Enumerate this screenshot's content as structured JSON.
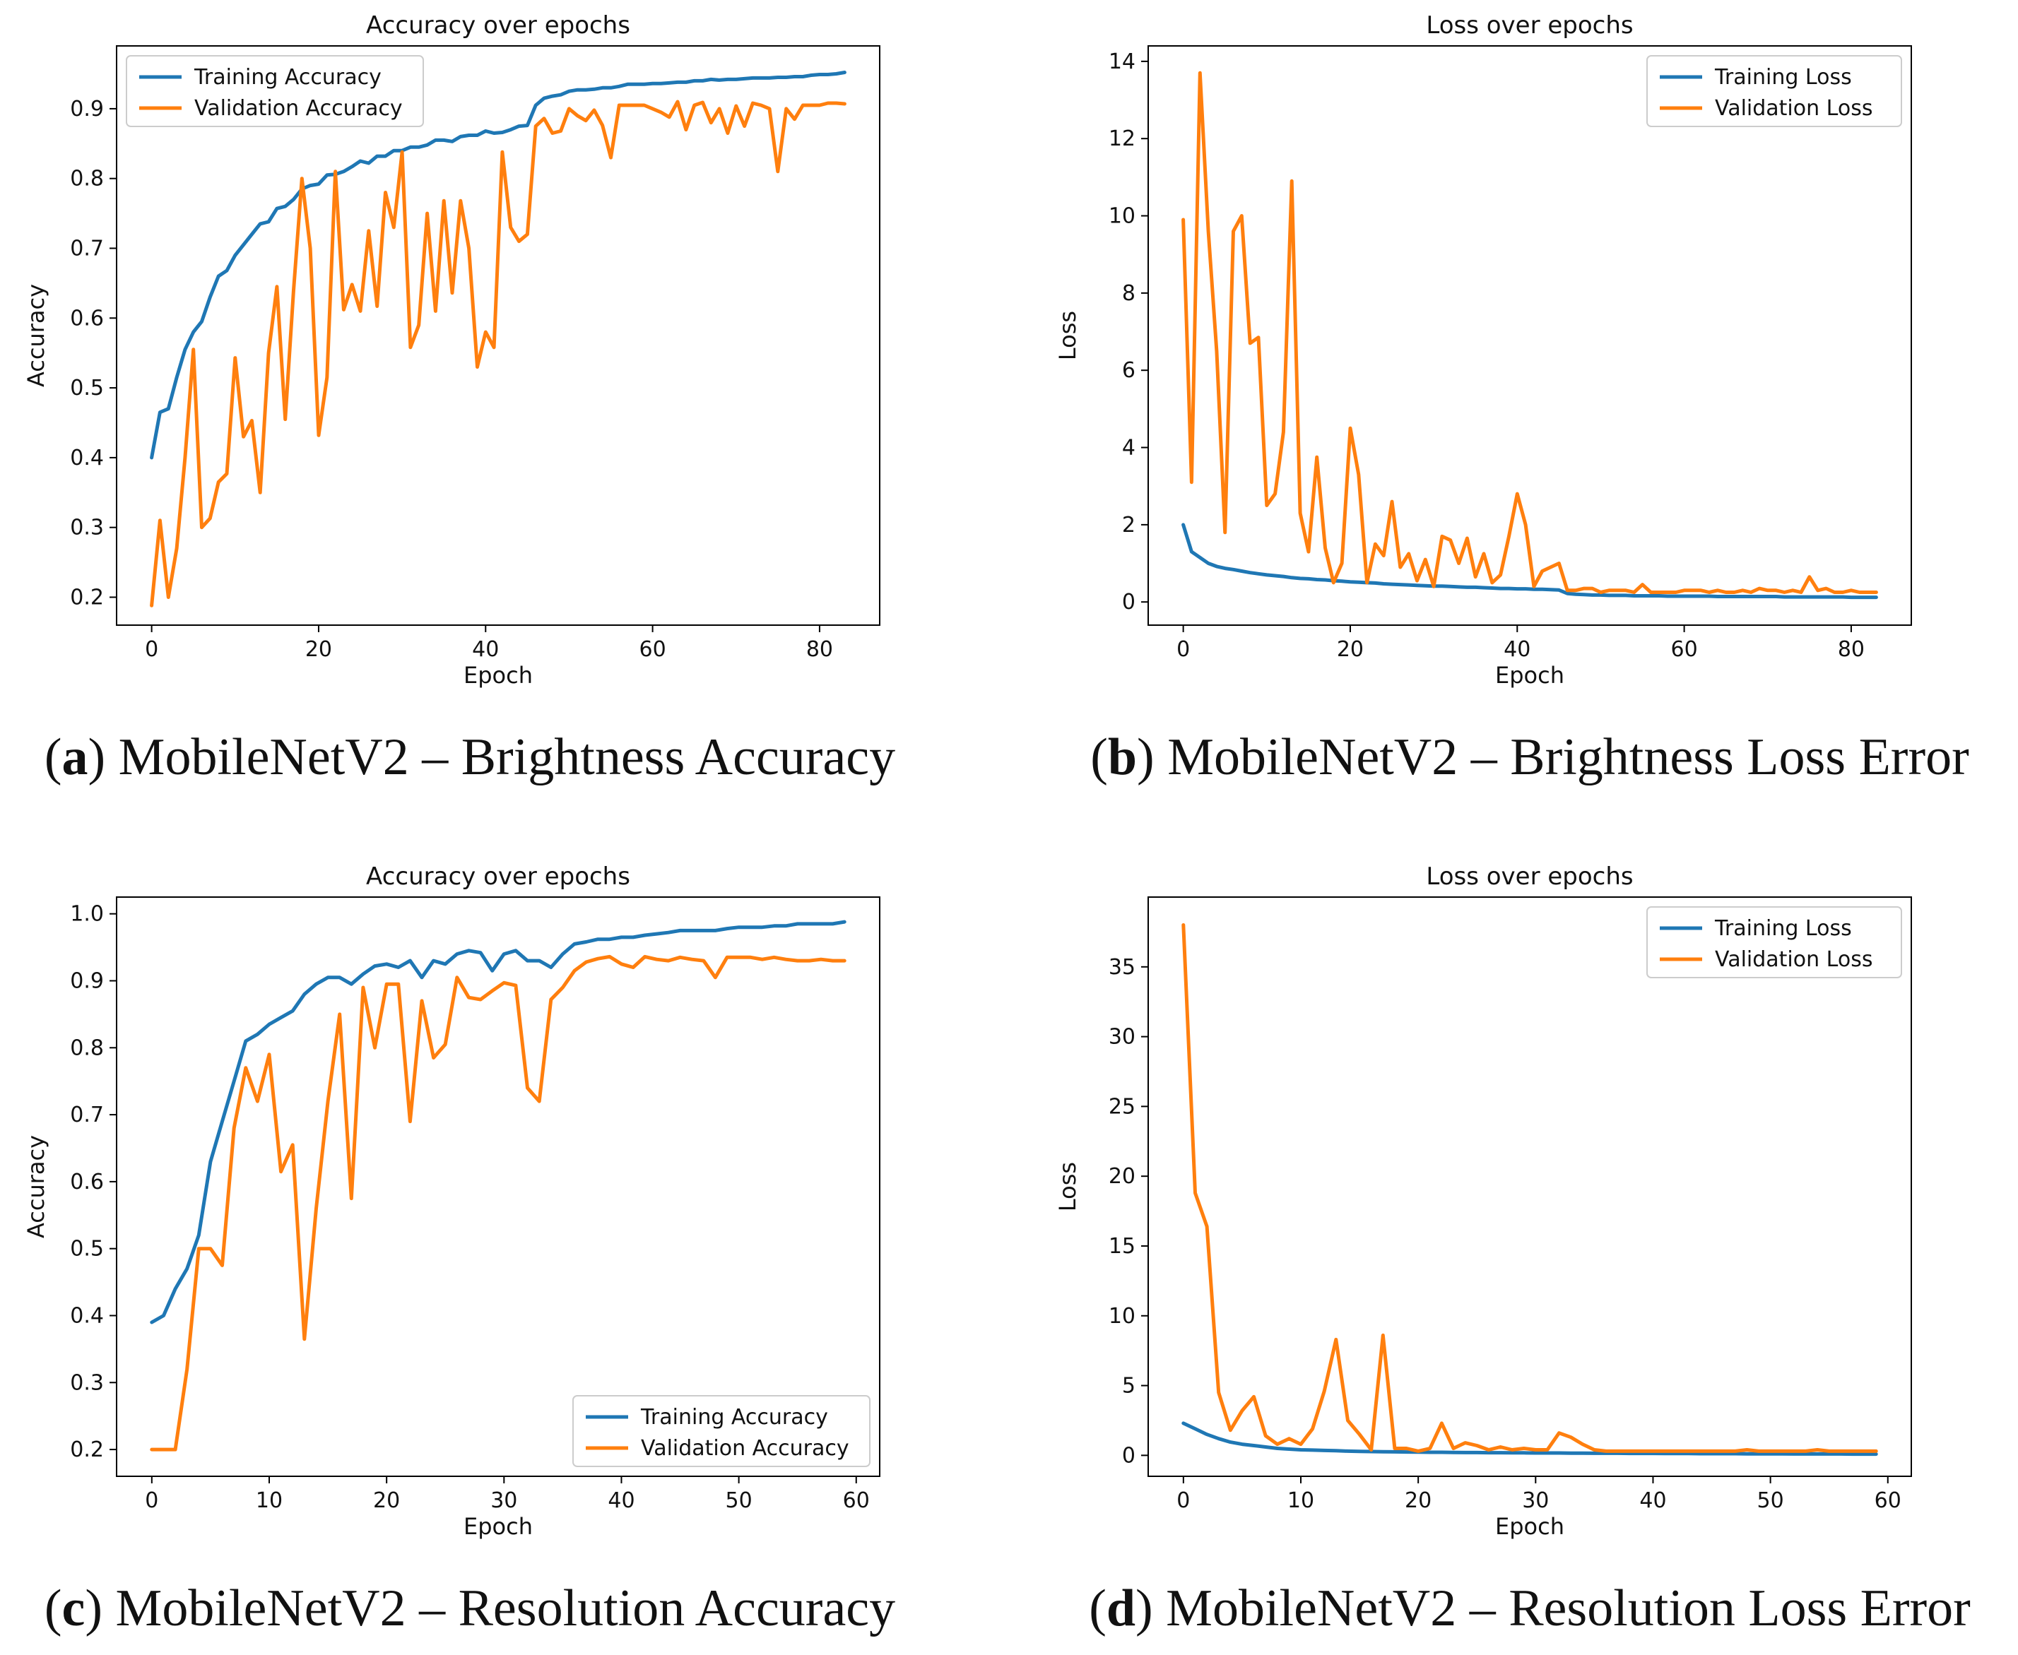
{
  "colors": {
    "training": "#1f77b4",
    "validation": "#ff7f0e",
    "axis": "#000000"
  },
  "figure": {
    "panels": [
      {
        "id": "a",
        "letter": "a",
        "caption": "MobileNetV2 – Brightness Accuracy"
      },
      {
        "id": "b",
        "letter": "b",
        "caption": "MobileNetV2 – Brightness Loss Error"
      },
      {
        "id": "c",
        "letter": "c",
        "caption": "MobileNetV2 – Resolution Accuracy"
      },
      {
        "id": "d",
        "letter": "d",
        "caption": "MobileNetV2 – Resolution Loss Error"
      }
    ]
  },
  "chart_data": [
    {
      "panel": "a",
      "type": "line",
      "title": "Accuracy over epochs",
      "xlabel": "Epoch",
      "ylabel": "Accuracy",
      "xlim": [
        -4.2,
        87.2
      ],
      "ylim": [
        0.16,
        0.99
      ],
      "xticks": [
        0,
        20,
        40,
        60,
        80
      ],
      "xtick_labels": [
        "0",
        "20",
        "40",
        "60",
        "80"
      ],
      "yticks": [
        0.2,
        0.3,
        0.4,
        0.5,
        0.6,
        0.7,
        0.8,
        0.9
      ],
      "ytick_labels": [
        "0.2",
        "0.3",
        "0.4",
        "0.5",
        "0.6",
        "0.7",
        "0.8",
        "0.9"
      ],
      "legend_loc": "upper-left",
      "series": [
        {
          "name": "Training Accuracy",
          "values": [
            0.4,
            0.465,
            0.47,
            0.515,
            0.555,
            0.58,
            0.595,
            0.63,
            0.66,
            0.668,
            0.69,
            0.705,
            0.72,
            0.735,
            0.738,
            0.757,
            0.76,
            0.77,
            0.785,
            0.79,
            0.792,
            0.805,
            0.806,
            0.81,
            0.817,
            0.825,
            0.822,
            0.832,
            0.832,
            0.84,
            0.84,
            0.845,
            0.845,
            0.848,
            0.855,
            0.855,
            0.853,
            0.86,
            0.862,
            0.862,
            0.868,
            0.865,
            0.866,
            0.87,
            0.875,
            0.876,
            0.905,
            0.915,
            0.918,
            0.92,
            0.925,
            0.927,
            0.927,
            0.928,
            0.93,
            0.93,
            0.932,
            0.935,
            0.935,
            0.935,
            0.936,
            0.936,
            0.937,
            0.938,
            0.938,
            0.94,
            0.94,
            0.942,
            0.941,
            0.942,
            0.942,
            0.943,
            0.944,
            0.944,
            0.944,
            0.945,
            0.945,
            0.946,
            0.946,
            0.948,
            0.949,
            0.949,
            0.95,
            0.952
          ]
        },
        {
          "name": "Validation Accuracy",
          "values": [
            0.188,
            0.31,
            0.2,
            0.27,
            0.4,
            0.555,
            0.3,
            0.313,
            0.365,
            0.377,
            0.543,
            0.43,
            0.453,
            0.35,
            0.55,
            0.645,
            0.455,
            0.64,
            0.8,
            0.7,
            0.432,
            0.515,
            0.81,
            0.612,
            0.648,
            0.61,
            0.725,
            0.617,
            0.78,
            0.73,
            0.838,
            0.558,
            0.59,
            0.75,
            0.61,
            0.768,
            0.636,
            0.768,
            0.7,
            0.53,
            0.58,
            0.558,
            0.838,
            0.73,
            0.71,
            0.72,
            0.875,
            0.886,
            0.865,
            0.868,
            0.9,
            0.89,
            0.883,
            0.898,
            0.876,
            0.83,
            0.905,
            0.905,
            0.905,
            0.905,
            0.9,
            0.895,
            0.888,
            0.91,
            0.87,
            0.905,
            0.909,
            0.88,
            0.9,
            0.865,
            0.904,
            0.875,
            0.908,
            0.905,
            0.9,
            0.81,
            0.9,
            0.885,
            0.905,
            0.905,
            0.905,
            0.908,
            0.908,
            0.907
          ]
        }
      ]
    },
    {
      "panel": "b",
      "type": "line",
      "title": "Loss over epochs",
      "xlabel": "Epoch",
      "ylabel": "Loss",
      "xlim": [
        -4.2,
        87.2
      ],
      "ylim": [
        -0.6,
        14.4
      ],
      "xticks": [
        0,
        20,
        40,
        60,
        80
      ],
      "xtick_labels": [
        "0",
        "20",
        "40",
        "60",
        "80"
      ],
      "yticks": [
        0,
        2,
        4,
        6,
        8,
        10,
        12,
        14
      ],
      "ytick_labels": [
        "0",
        "2",
        "4",
        "6",
        "8",
        "10",
        "12",
        "14"
      ],
      "legend_loc": "upper-right",
      "series": [
        {
          "name": "Training Loss",
          "values": [
            2.0,
            1.3,
            1.15,
            1.0,
            0.92,
            0.87,
            0.84,
            0.8,
            0.76,
            0.73,
            0.7,
            0.68,
            0.66,
            0.63,
            0.61,
            0.6,
            0.58,
            0.57,
            0.55,
            0.54,
            0.52,
            0.51,
            0.5,
            0.49,
            0.47,
            0.46,
            0.45,
            0.44,
            0.43,
            0.42,
            0.41,
            0.41,
            0.4,
            0.39,
            0.38,
            0.38,
            0.37,
            0.36,
            0.35,
            0.35,
            0.34,
            0.34,
            0.33,
            0.33,
            0.32,
            0.31,
            0.22,
            0.2,
            0.19,
            0.18,
            0.18,
            0.17,
            0.17,
            0.17,
            0.16,
            0.16,
            0.16,
            0.16,
            0.15,
            0.15,
            0.15,
            0.15,
            0.15,
            0.15,
            0.14,
            0.14,
            0.14,
            0.14,
            0.14,
            0.14,
            0.14,
            0.14,
            0.13,
            0.13,
            0.13,
            0.13,
            0.13,
            0.13,
            0.13,
            0.13,
            0.12,
            0.12,
            0.12,
            0.12
          ]
        },
        {
          "name": "Validation Loss",
          "values": [
            9.9,
            3.1,
            13.7,
            9.6,
            6.5,
            1.8,
            9.6,
            10.0,
            6.7,
            6.85,
            2.5,
            2.8,
            4.4,
            10.9,
            2.3,
            1.3,
            3.75,
            1.4,
            0.5,
            1.0,
            4.5,
            3.3,
            0.5,
            1.5,
            1.2,
            2.6,
            0.9,
            1.25,
            0.55,
            1.1,
            0.4,
            1.7,
            1.6,
            1.0,
            1.65,
            0.65,
            1.25,
            0.5,
            0.7,
            1.7,
            2.8,
            2.0,
            0.4,
            0.8,
            0.9,
            1.0,
            0.3,
            0.3,
            0.35,
            0.35,
            0.25,
            0.3,
            0.3,
            0.3,
            0.25,
            0.45,
            0.25,
            0.25,
            0.25,
            0.25,
            0.3,
            0.3,
            0.3,
            0.25,
            0.3,
            0.25,
            0.25,
            0.3,
            0.25,
            0.35,
            0.3,
            0.3,
            0.25,
            0.3,
            0.25,
            0.65,
            0.3,
            0.35,
            0.25,
            0.25,
            0.3,
            0.25,
            0.25,
            0.25
          ]
        }
      ]
    },
    {
      "panel": "c",
      "type": "line",
      "title": "Accuracy over epochs",
      "xlabel": "Epoch",
      "ylabel": "Accuracy",
      "xlim": [
        -3.0,
        62.0
      ],
      "ylim": [
        0.16,
        1.025
      ],
      "xticks": [
        0,
        10,
        20,
        30,
        40,
        50,
        60
      ],
      "xtick_labels": [
        "0",
        "10",
        "20",
        "30",
        "40",
        "50",
        "60"
      ],
      "yticks": [
        0.2,
        0.3,
        0.4,
        0.5,
        0.6,
        0.7,
        0.8,
        0.9,
        1.0
      ],
      "ytick_labels": [
        "0.2",
        "0.3",
        "0.4",
        "0.5",
        "0.6",
        "0.7",
        "0.8",
        "0.9",
        "1.0"
      ],
      "legend_loc": "lower-right",
      "series": [
        {
          "name": "Training Accuracy",
          "values": [
            0.39,
            0.4,
            0.44,
            0.47,
            0.52,
            0.63,
            0.69,
            0.75,
            0.81,
            0.82,
            0.835,
            0.845,
            0.855,
            0.88,
            0.895,
            0.905,
            0.905,
            0.895,
            0.91,
            0.922,
            0.925,
            0.92,
            0.93,
            0.905,
            0.93,
            0.925,
            0.94,
            0.945,
            0.942,
            0.915,
            0.94,
            0.945,
            0.93,
            0.93,
            0.92,
            0.94,
            0.955,
            0.958,
            0.962,
            0.962,
            0.965,
            0.965,
            0.968,
            0.97,
            0.972,
            0.975,
            0.975,
            0.975,
            0.975,
            0.978,
            0.98,
            0.98,
            0.98,
            0.982,
            0.982,
            0.985,
            0.985,
            0.985,
            0.985,
            0.988
          ]
        },
        {
          "name": "Validation Accuracy",
          "values": [
            0.2,
            0.2,
            0.2,
            0.32,
            0.5,
            0.5,
            0.475,
            0.68,
            0.77,
            0.72,
            0.79,
            0.615,
            0.655,
            0.365,
            0.56,
            0.72,
            0.85,
            0.575,
            0.89,
            0.8,
            0.895,
            0.895,
            0.69,
            0.87,
            0.785,
            0.805,
            0.905,
            0.875,
            0.872,
            0.885,
            0.897,
            0.893,
            0.74,
            0.72,
            0.872,
            0.89,
            0.915,
            0.928,
            0.933,
            0.936,
            0.925,
            0.92,
            0.936,
            0.932,
            0.93,
            0.935,
            0.932,
            0.93,
            0.905,
            0.935,
            0.935,
            0.935,
            0.932,
            0.935,
            0.932,
            0.93,
            0.93,
            0.932,
            0.93,
            0.93
          ]
        }
      ]
    },
    {
      "panel": "d",
      "type": "line",
      "title": "Loss over epochs",
      "xlabel": "Epoch",
      "ylabel": "Loss",
      "xlim": [
        -3.0,
        62.0
      ],
      "ylim": [
        -1.5,
        40.0
      ],
      "xticks": [
        0,
        10,
        20,
        30,
        40,
        50,
        60
      ],
      "xtick_labels": [
        "0",
        "10",
        "20",
        "30",
        "40",
        "50",
        "60"
      ],
      "yticks": [
        0,
        5,
        10,
        15,
        20,
        25,
        30,
        35
      ],
      "ytick_labels": [
        "0",
        "5",
        "10",
        "15",
        "20",
        "25",
        "30",
        "35"
      ],
      "legend_loc": "upper-right",
      "series": [
        {
          "name": "Training Loss",
          "values": [
            2.3,
            1.9,
            1.5,
            1.2,
            0.95,
            0.8,
            0.7,
            0.6,
            0.5,
            0.45,
            0.4,
            0.38,
            0.35,
            0.33,
            0.3,
            0.28,
            0.27,
            0.26,
            0.25,
            0.24,
            0.23,
            0.22,
            0.22,
            0.21,
            0.2,
            0.2,
            0.19,
            0.19,
            0.18,
            0.18,
            0.17,
            0.17,
            0.17,
            0.16,
            0.16,
            0.15,
            0.15,
            0.15,
            0.14,
            0.14,
            0.14,
            0.13,
            0.13,
            0.13,
            0.12,
            0.12,
            0.12,
            0.12,
            0.11,
            0.11,
            0.11,
            0.11,
            0.1,
            0.1,
            0.1,
            0.1,
            0.1,
            0.09,
            0.09,
            0.09
          ]
        },
        {
          "name": "Validation Loss",
          "values": [
            38.0,
            18.8,
            16.4,
            4.5,
            1.8,
            3.2,
            4.2,
            1.4,
            0.8,
            1.2,
            0.8,
            1.9,
            4.6,
            8.3,
            2.5,
            1.5,
            0.4,
            8.6,
            0.5,
            0.5,
            0.3,
            0.5,
            2.3,
            0.5,
            0.9,
            0.7,
            0.4,
            0.6,
            0.4,
            0.5,
            0.4,
            0.4,
            1.6,
            1.3,
            0.8,
            0.4,
            0.3,
            0.3,
            0.3,
            0.3,
            0.3,
            0.3,
            0.3,
            0.3,
            0.3,
            0.3,
            0.3,
            0.3,
            0.4,
            0.3,
            0.3,
            0.3,
            0.3,
            0.3,
            0.4,
            0.3,
            0.3,
            0.3,
            0.3,
            0.3
          ]
        }
      ]
    }
  ]
}
